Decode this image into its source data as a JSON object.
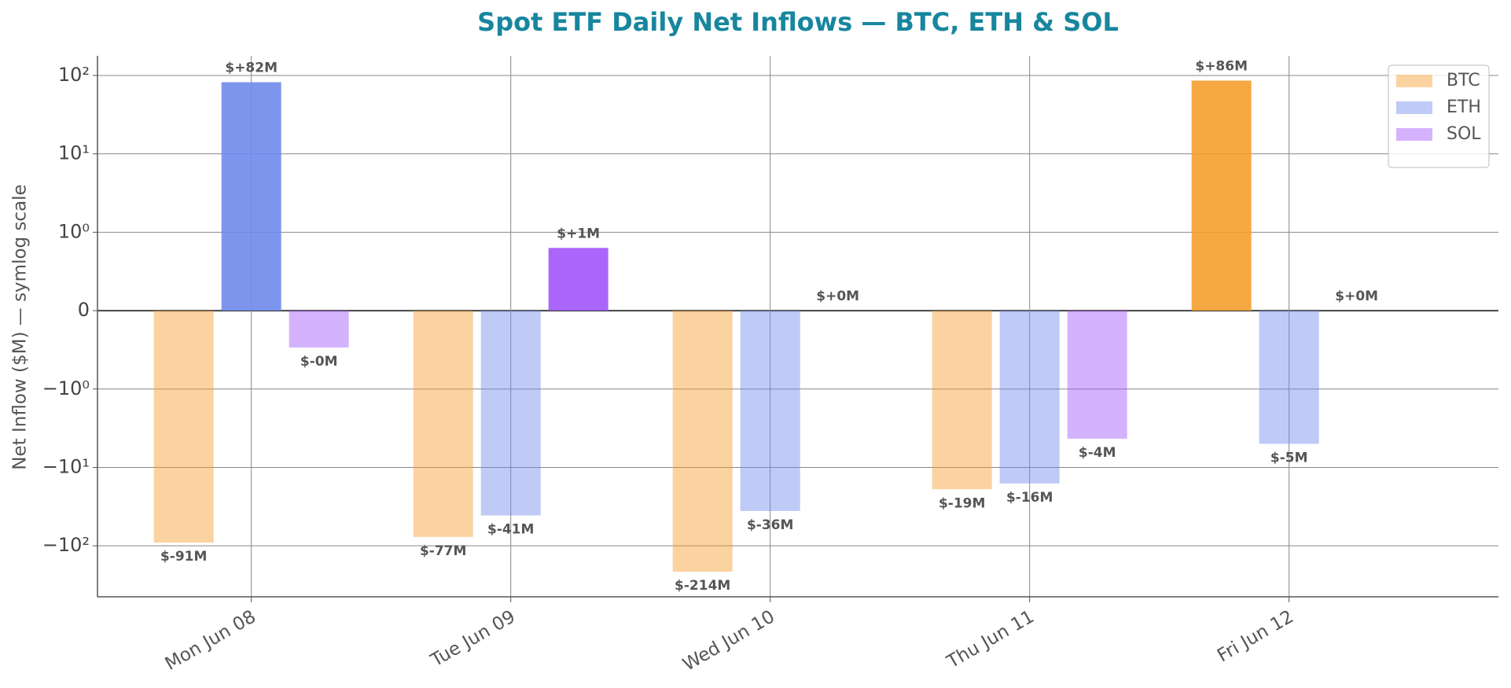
{
  "chart_data": {
    "type": "bar",
    "title": "Spot ETF Daily Net Inflows — BTC, ETH & SOL",
    "y_label": "Net Inflow ($M) — symlog scale",
    "categories": [
      "Mon Jun 08",
      "Tue Jun 09",
      "Wed Jun 10",
      "Thu Jun 11",
      "Fri Jun 12"
    ],
    "series": [
      {
        "name": "BTC",
        "color": "#f59e2e",
        "values": [
          -91,
          -77,
          -214,
          -19,
          86
        ],
        "value_labels": [
          "$-91M",
          "$-77M",
          "$-214M",
          "$-19M",
          "$+86M"
        ]
      },
      {
        "name": "ETH",
        "color": "#7089ec",
        "values": [
          82,
          -41,
          -36,
          -16,
          -5
        ],
        "value_labels": [
          "$+82M",
          "$-41M",
          "$-36M",
          "$-16M",
          "$-5M"
        ]
      },
      {
        "name": "SOL",
        "color": "#a155fb",
        "values": [
          -0.47,
          0.8,
          0,
          -4.3,
          0
        ],
        "value_labels": [
          "$-0M",
          "$+1M",
          "$+0M",
          "$-4M",
          "$+0M"
        ]
      }
    ],
    "yscale": "symlog",
    "linthresh": 1,
    "ylim": [
      -447,
      178
    ],
    "yticks": [
      {
        "value": -100,
        "label": "−10²"
      },
      {
        "value": -10,
        "label": "−10¹"
      },
      {
        "value": -1,
        "label": "−10⁰"
      },
      0,
      {
        "value": 1,
        "label": "10⁰"
      },
      {
        "value": 10,
        "label": "10¹"
      },
      {
        "value": 100,
        "label": "10²"
      }
    ],
    "grid": true,
    "legend": "upper right"
  }
}
